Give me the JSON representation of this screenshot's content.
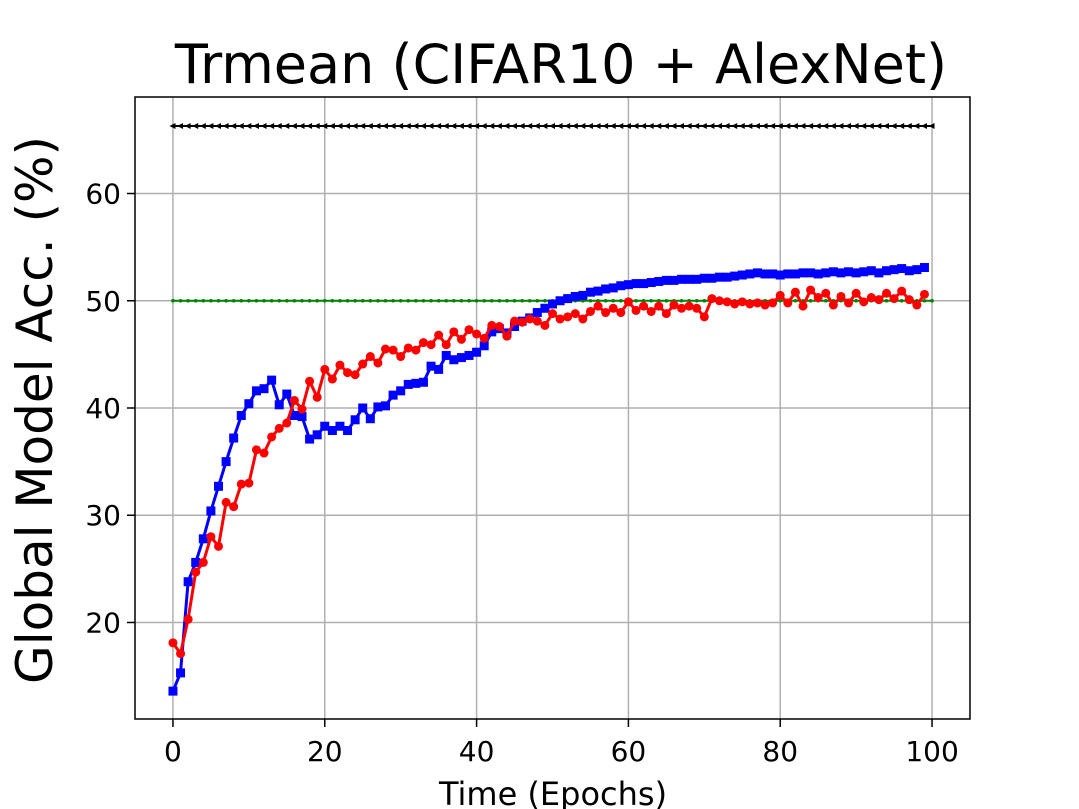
{
  "chart_data": {
    "type": "line",
    "title": "Trmean (CIFAR10 + AlexNet)",
    "xlabel": "Time (Epochs)",
    "ylabel": "Global Model Acc. (%)",
    "xlim": [
      -5,
      105
    ],
    "ylim": [
      11,
      69
    ],
    "xticks": [
      0,
      20,
      40,
      60,
      80,
      100
    ],
    "yticks": [
      20,
      30,
      40,
      50,
      60
    ],
    "grid": true,
    "legend": "none",
    "series": [
      {
        "color": "#000000",
        "marker": "triangle-left",
        "x_start": 0,
        "x_end": 100,
        "x_step": 1,
        "values": [
          66.3
        ]
      },
      {
        "color": "#008000",
        "marker": "point",
        "x_start": 0,
        "x_end": 100,
        "x_step": 1,
        "values": [
          50.0
        ]
      },
      {
        "color": "#0000ff",
        "marker": "square",
        "x": [
          0,
          1,
          2,
          3,
          4,
          5,
          6,
          7,
          8,
          9,
          10,
          11,
          12,
          13,
          14,
          15,
          16,
          17,
          18,
          19,
          20,
          21,
          22,
          23,
          24,
          25,
          26,
          27,
          28,
          29,
          30,
          31,
          32,
          33,
          34,
          35,
          36,
          37,
          38,
          39,
          40,
          41,
          42,
          43,
          44,
          45,
          46,
          47,
          48,
          49,
          50,
          51,
          52,
          53,
          54,
          55,
          56,
          57,
          58,
          59,
          60,
          61,
          62,
          63,
          64,
          65,
          66,
          67,
          68,
          69,
          70,
          71,
          72,
          73,
          74,
          75,
          76,
          77,
          78,
          79,
          80,
          81,
          82,
          83,
          84,
          85,
          86,
          87,
          88,
          89,
          90,
          91,
          92,
          93,
          94,
          95,
          96,
          97,
          98,
          99
        ],
        "values": [
          13.6,
          15.3,
          23.8,
          25.6,
          27.8,
          30.4,
          32.7,
          35.0,
          37.2,
          39.3,
          40.4,
          41.6,
          41.8,
          42.6,
          40.3,
          41.3,
          39.3,
          39.2,
          37.1,
          37.5,
          38.3,
          37.9,
          38.3,
          37.9,
          38.9,
          40.0,
          39.0,
          40.1,
          40.2,
          41.2,
          41.6,
          42.2,
          42.3,
          42.4,
          43.9,
          43.6,
          44.9,
          44.5,
          44.7,
          44.9,
          45.2,
          45.8,
          47.1,
          47.4,
          47.0,
          47.6,
          48.1,
          48.4,
          48.9,
          49.3,
          49.7,
          50.0,
          50.2,
          50.4,
          50.5,
          50.8,
          50.9,
          51.1,
          51.2,
          51.4,
          51.5,
          51.6,
          51.6,
          51.7,
          51.8,
          51.9,
          51.9,
          52.0,
          52.0,
          52.0,
          52.1,
          52.1,
          52.2,
          52.2,
          52.3,
          52.4,
          52.5,
          52.6,
          52.5,
          52.5,
          52.4,
          52.5,
          52.5,
          52.6,
          52.6,
          52.5,
          52.6,
          52.7,
          52.6,
          52.7,
          52.6,
          52.7,
          52.8,
          52.6,
          52.8,
          52.9,
          53.0,
          52.8,
          52.9,
          53.1
        ]
      },
      {
        "color": "#ff0000",
        "marker": "circle",
        "x": [
          0,
          1,
          2,
          3,
          4,
          5,
          6,
          7,
          8,
          9,
          10,
          11,
          12,
          13,
          14,
          15,
          16,
          17,
          18,
          19,
          20,
          21,
          22,
          23,
          24,
          25,
          26,
          27,
          28,
          29,
          30,
          31,
          32,
          33,
          34,
          35,
          36,
          37,
          38,
          39,
          40,
          41,
          42,
          43,
          44,
          45,
          46,
          47,
          48,
          49,
          50,
          51,
          52,
          53,
          54,
          55,
          56,
          57,
          58,
          59,
          60,
          61,
          62,
          63,
          64,
          65,
          66,
          67,
          68,
          69,
          70,
          71,
          72,
          73,
          74,
          75,
          76,
          77,
          78,
          79,
          80,
          81,
          82,
          83,
          84,
          85,
          86,
          87,
          88,
          89,
          90,
          91,
          92,
          93,
          94,
          95,
          96,
          97,
          98,
          99
        ],
        "values": [
          18.1,
          17.1,
          20.3,
          24.7,
          25.6,
          28.0,
          27.1,
          31.2,
          30.8,
          32.9,
          33.0,
          36.1,
          35.8,
          37.3,
          38.1,
          38.6,
          40.7,
          39.9,
          42.5,
          41.0,
          43.6,
          42.7,
          44.0,
          43.3,
          43.1,
          44.1,
          44.8,
          44.2,
          45.5,
          45.4,
          44.8,
          45.6,
          45.4,
          46.1,
          45.9,
          46.8,
          45.9,
          47.1,
          46.4,
          47.3,
          46.9,
          46.5,
          47.7,
          47.6,
          46.7,
          48.1,
          48.0,
          48.3,
          48.1,
          47.7,
          48.8,
          48.3,
          48.5,
          48.8,
          48.3,
          49.0,
          49.5,
          48.9,
          49.3,
          48.9,
          49.9,
          49.1,
          49.5,
          49.0,
          49.5,
          48.8,
          49.6,
          49.3,
          49.5,
          49.3,
          48.5,
          50.2,
          50.0,
          49.9,
          49.7,
          49.9,
          49.7,
          49.8,
          49.6,
          49.8,
          50.5,
          49.8,
          50.8,
          49.5,
          51.0,
          50.3,
          50.7,
          49.6,
          50.4,
          49.8,
          50.7,
          49.9,
          50.3,
          50.1,
          50.7,
          50.2,
          50.9,
          50.1,
          49.6,
          50.6
        ]
      }
    ]
  }
}
